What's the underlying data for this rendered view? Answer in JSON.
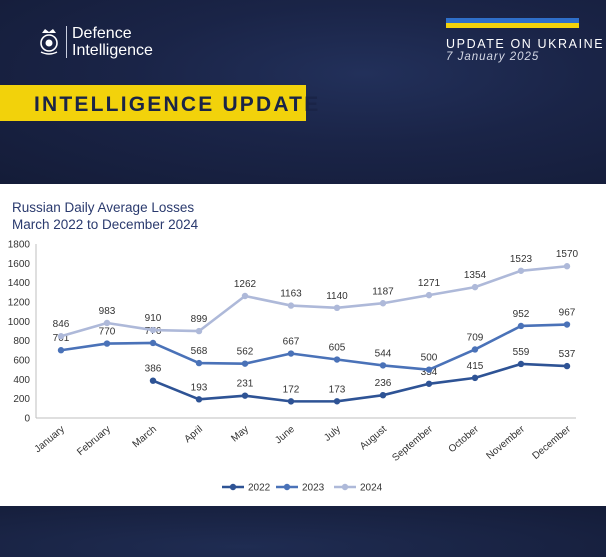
{
  "header": {
    "logo_line1": "Defence",
    "logo_line2": "Intelligence",
    "update_title": "UPDATE ON UKRAINE",
    "update_date": "7 January 2025",
    "banner": "INTELLIGENCE UPDATE"
  },
  "colors": {
    "navy": "#1a2447",
    "banner_yellow": "#f2d20b",
    "flag_blue": "#2f6fc9",
    "series_2022": "#2e5395",
    "series_2023": "#4a72b8",
    "series_2024": "#aeb9d9"
  },
  "chart_data": {
    "type": "line",
    "title_line1": "Russian Daily Average Losses",
    "title_line2": "March 2022 to December 2024",
    "categories": [
      "January",
      "February",
      "March",
      "April",
      "May",
      "June",
      "July",
      "August",
      "September",
      "October",
      "November",
      "December"
    ],
    "ylim": [
      0,
      1800
    ],
    "yticks": [
      0,
      200,
      400,
      600,
      800,
      1000,
      1200,
      1400,
      1600,
      1800
    ],
    "grid": false,
    "legend_position": "bottom",
    "series": [
      {
        "name": "2022",
        "values": [
          null,
          null,
          386,
          193,
          231,
          172,
          173,
          236,
          354,
          415,
          559,
          537
        ]
      },
      {
        "name": "2023",
        "values": [
          701,
          770,
          776,
          568,
          562,
          667,
          605,
          544,
          500,
          709,
          952,
          967
        ]
      },
      {
        "name": "2024",
        "values": [
          846,
          983,
          910,
          899,
          1262,
          1163,
          1140,
          1187,
          1271,
          1354,
          1523,
          1570
        ]
      }
    ]
  }
}
